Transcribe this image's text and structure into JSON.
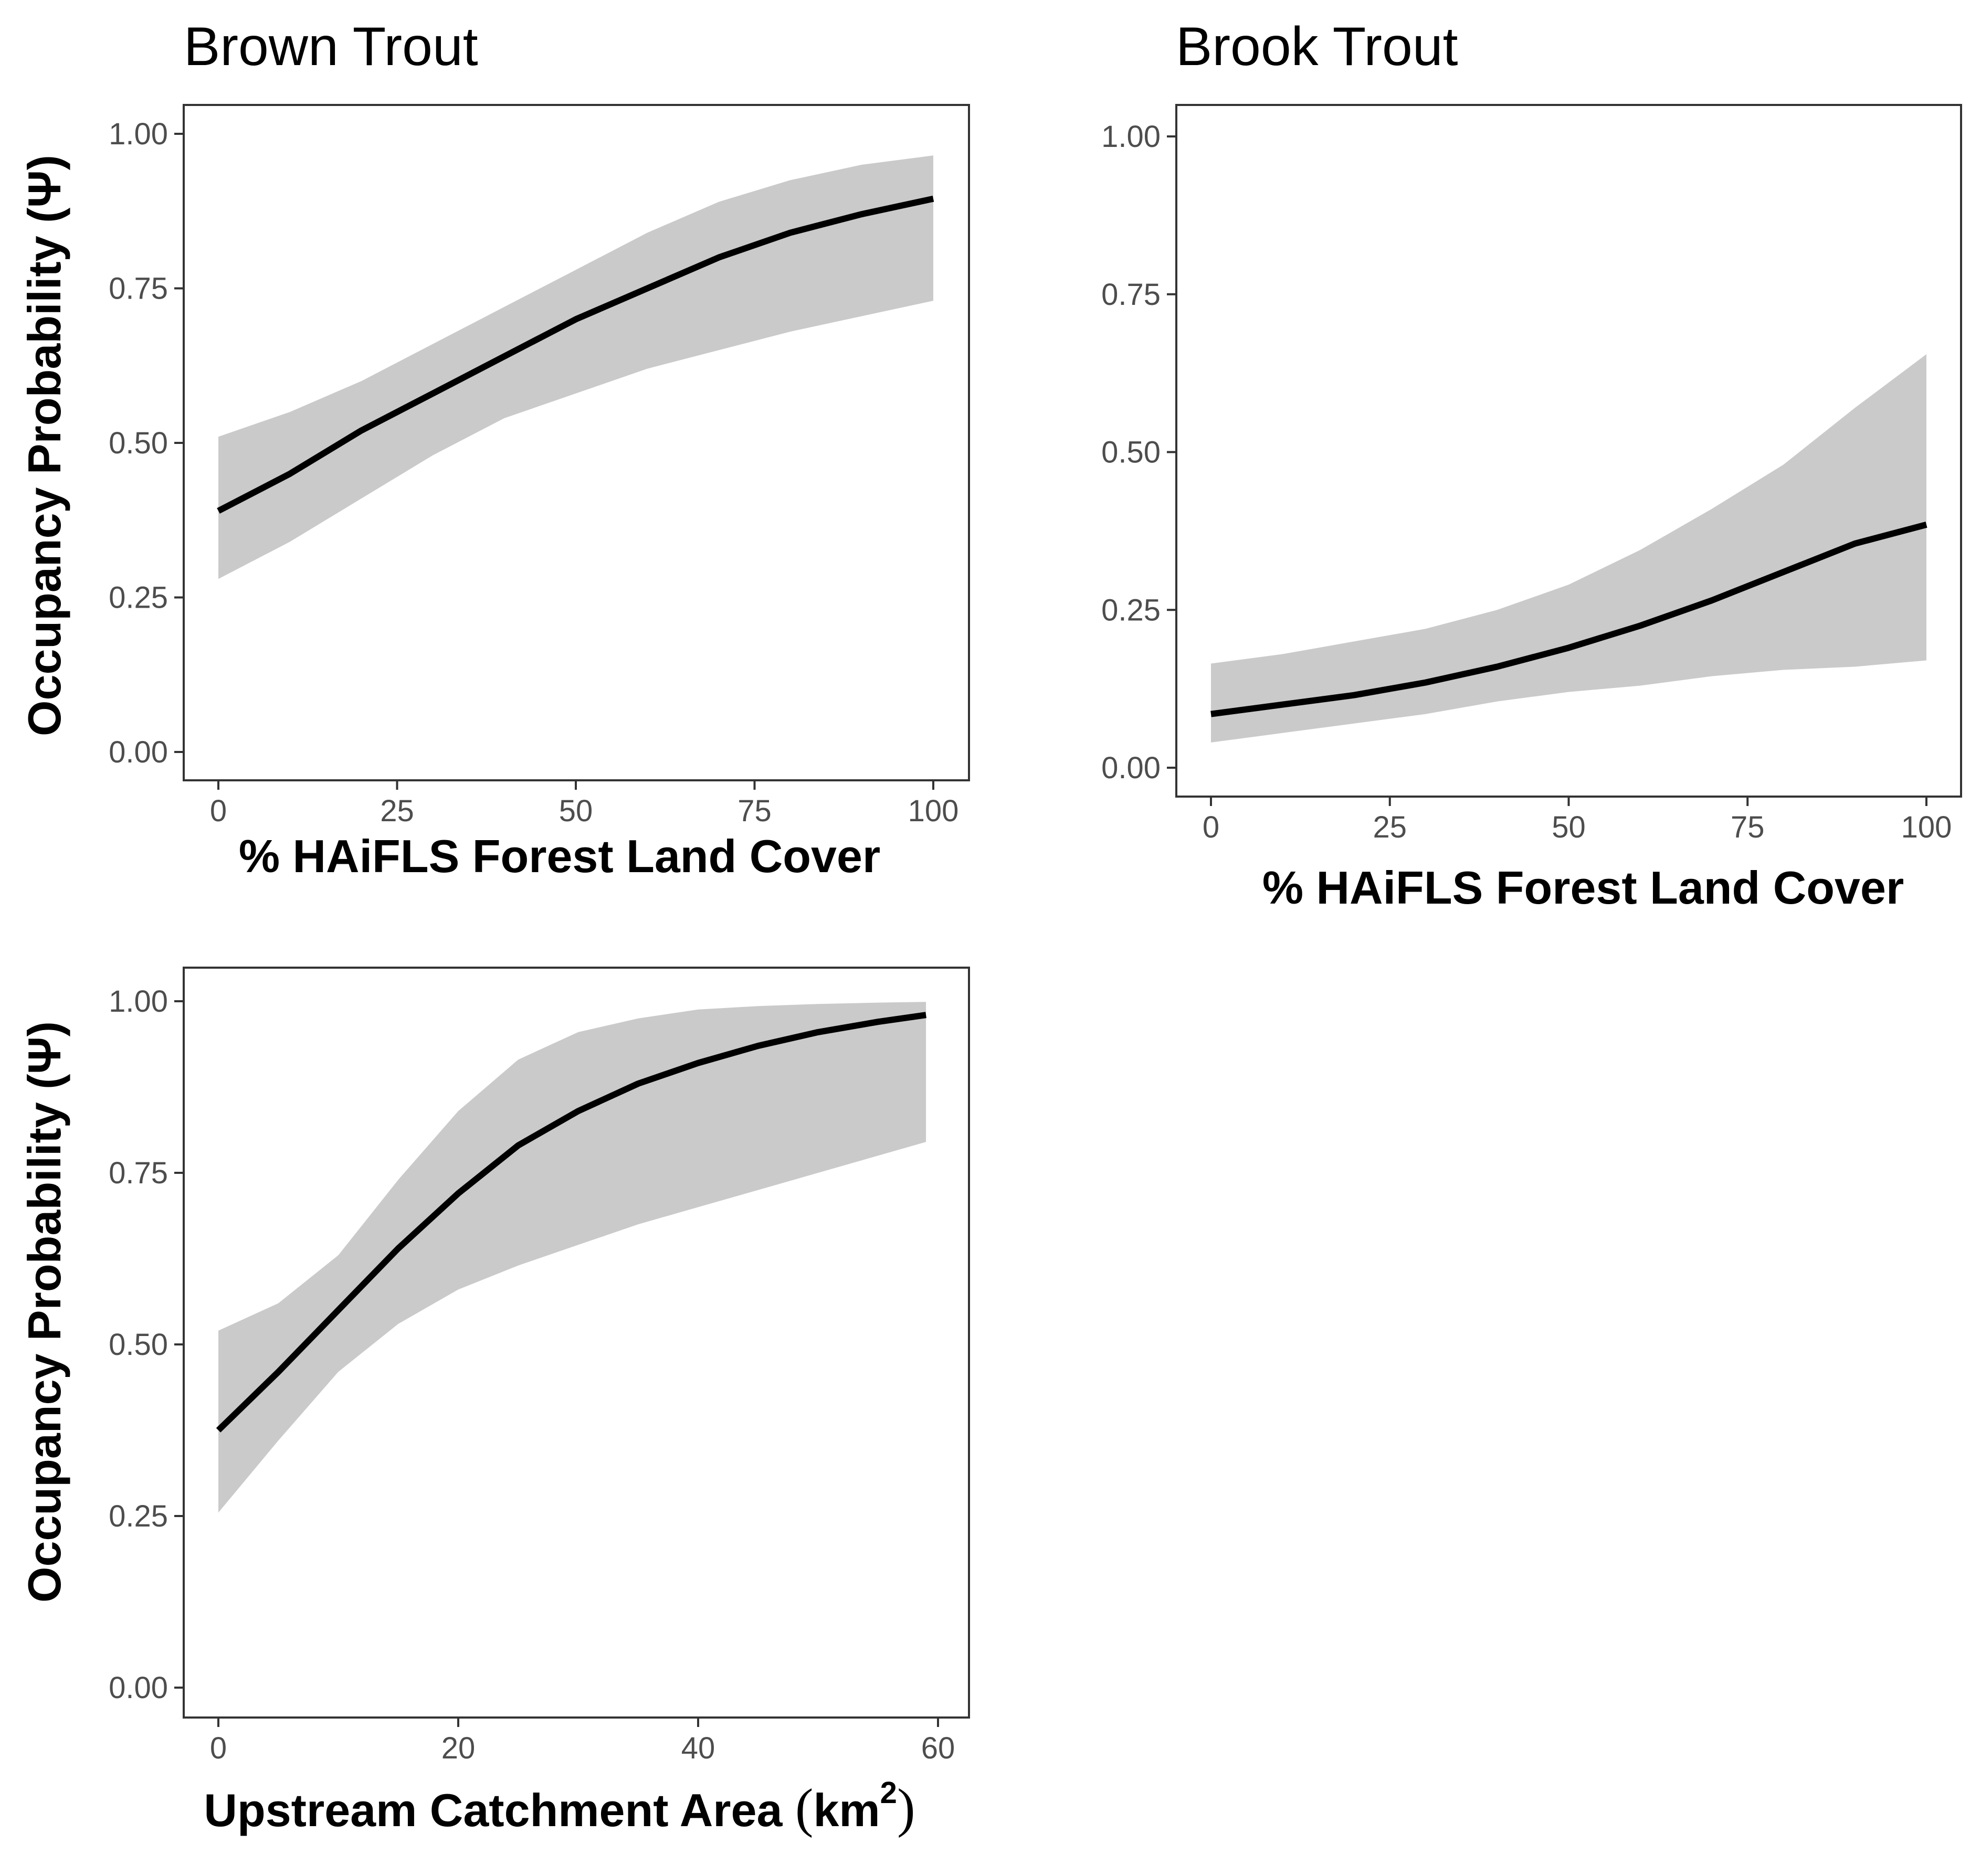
{
  "colors": {
    "band": "#cacaca",
    "line": "#000000",
    "frame": "#333333",
    "tick_text": "#4d4d4d"
  },
  "chart_data": [
    {
      "type": "line",
      "title": "Brown Trout",
      "xlabel": "% HAiFLS Forest Land Cover",
      "ylabel": "Occupancy Probability (Ψ)",
      "xlim": [
        0,
        100
      ],
      "ylim": [
        0,
        1
      ],
      "xticks": [
        0,
        25,
        50,
        75,
        100
      ],
      "xtick_labels": [
        "0",
        "25",
        "50",
        "75",
        "100"
      ],
      "yticks": [
        0,
        0.25,
        0.5,
        0.75,
        1
      ],
      "ytick_labels": [
        "0.00",
        "0.25",
        "0.50",
        "0.75",
        "1.00"
      ],
      "grid": false,
      "series": [
        {
          "x": [
            0,
            10,
            20,
            30,
            40,
            50,
            60,
            70,
            80,
            90,
            100
          ],
          "y": [
            0.39,
            0.45,
            0.52,
            0.58,
            0.64,
            0.7,
            0.75,
            0.8,
            0.84,
            0.87,
            0.895
          ],
          "lower": [
            0.28,
            0.34,
            0.41,
            0.48,
            0.54,
            0.58,
            0.62,
            0.65,
            0.68,
            0.705,
            0.73
          ],
          "upper": [
            0.51,
            0.55,
            0.6,
            0.66,
            0.72,
            0.78,
            0.84,
            0.89,
            0.925,
            0.95,
            0.965
          ]
        }
      ]
    },
    {
      "type": "line",
      "title": "Brook Trout",
      "xlabel": "% HAiFLS Forest Land Cover",
      "ylabel": "",
      "xlim": [
        0,
        100
      ],
      "ylim": [
        0,
        1
      ],
      "xticks": [
        0,
        25,
        50,
        75,
        100
      ],
      "xtick_labels": [
        "0",
        "25",
        "50",
        "75",
        "100"
      ],
      "yticks": [
        0,
        0.25,
        0.5,
        0.75,
        1
      ],
      "ytick_labels": [
        "0.00",
        "0.25",
        "0.50",
        "0.75",
        "1.00"
      ],
      "grid": false,
      "series": [
        {
          "x": [
            0,
            10,
            20,
            30,
            40,
            50,
            60,
            70,
            80,
            90,
            100
          ],
          "y": [
            0.085,
            0.1,
            0.115,
            0.135,
            0.16,
            0.19,
            0.225,
            0.265,
            0.31,
            0.355,
            0.385
          ],
          "lower": [
            0.04,
            0.055,
            0.07,
            0.085,
            0.105,
            0.12,
            0.13,
            0.145,
            0.155,
            0.16,
            0.17
          ],
          "upper": [
            0.165,
            0.18,
            0.2,
            0.22,
            0.25,
            0.29,
            0.345,
            0.41,
            0.48,
            0.57,
            0.655
          ]
        }
      ]
    },
    {
      "type": "line",
      "title": "",
      "xlabel": "Upstream Catchment Area",
      "xlabel_unit": "km",
      "xlabel_unit_sup": "2",
      "ylabel": "Occupancy Probability (Ψ)",
      "xlim": [
        0,
        60
      ],
      "ylim": [
        0,
        1
      ],
      "xticks": [
        0,
        20,
        40,
        60
      ],
      "xtick_labels": [
        "0",
        "20",
        "40",
        "60"
      ],
      "yticks": [
        0,
        0.25,
        0.5,
        0.75,
        1
      ],
      "ytick_labels": [
        "0.00",
        "0.25",
        "0.50",
        "0.75",
        "1.00"
      ],
      "grid": false,
      "series": [
        {
          "x": [
            0,
            5,
            10,
            15,
            20,
            25,
            30,
            35,
            40,
            45,
            50,
            55,
            59
          ],
          "y": [
            0.375,
            0.46,
            0.55,
            0.64,
            0.72,
            0.79,
            0.84,
            0.88,
            0.91,
            0.935,
            0.955,
            0.97,
            0.98
          ],
          "lower": [
            0.255,
            0.36,
            0.46,
            0.53,
            0.58,
            0.615,
            0.645,
            0.675,
            0.7,
            0.725,
            0.75,
            0.775,
            0.795
          ],
          "upper": [
            0.52,
            0.56,
            0.63,
            0.74,
            0.84,
            0.915,
            0.955,
            0.975,
            0.988,
            0.993,
            0.996,
            0.998,
            0.999
          ]
        }
      ]
    }
  ]
}
